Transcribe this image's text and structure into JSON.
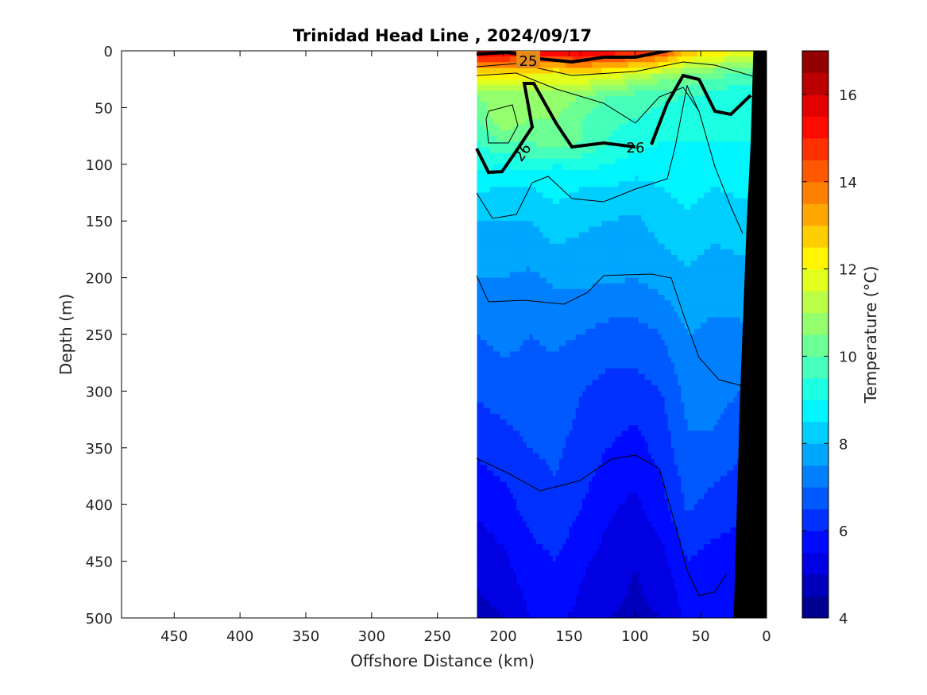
{
  "chart_data": {
    "type": "heatmap",
    "title": "Trinidad Head Line , 2024/09/17",
    "xlabel": "Offshore Distance (km)",
    "ylabel": "Depth (m)",
    "xlim": [
      490,
      0
    ],
    "ylim": [
      500,
      0
    ],
    "x_reversed": true,
    "y_reversed": true,
    "x_ticks": [
      450,
      400,
      350,
      300,
      250,
      200,
      150,
      100,
      50,
      0
    ],
    "y_ticks": [
      0,
      50,
      100,
      150,
      200,
      250,
      300,
      350,
      400,
      450,
      500
    ],
    "colorbar": {
      "label": "Temperature (°C)",
      "range": [
        4,
        17
      ],
      "ticks": [
        4,
        6,
        8,
        10,
        12,
        14,
        16
      ],
      "levels": [
        4,
        4.5,
        5,
        5.5,
        6,
        6.5,
        7,
        7.5,
        8,
        8.5,
        9,
        9.5,
        10,
        10.5,
        11,
        11.5,
        12,
        12.5,
        13,
        13.5,
        14,
        14.5,
        15,
        15.5,
        16,
        16.5,
        17
      ],
      "colormap": "jet"
    },
    "data_extent_km": [
      220,
      0
    ],
    "contour_labels": [
      "25",
      "26",
      "26"
    ],
    "temperature_field": {
      "distance_km": [
        220,
        200,
        180,
        160,
        140,
        120,
        100,
        80,
        60,
        40,
        20
      ],
      "depth_m": [
        0,
        20,
        40,
        60,
        80,
        100,
        120,
        150,
        200,
        250,
        300,
        350,
        400,
        450,
        500
      ],
      "values": [
        [
          16.0,
          15.8,
          15.5,
          15.8,
          16.0,
          15.5,
          15.3,
          14.8,
          13.0,
          12.5,
          12.0
        ],
        [
          12.5,
          12.5,
          12.2,
          12.0,
          12.2,
          12.0,
          11.5,
          11.0,
          10.5,
          10.2,
          10.0
        ],
        [
          10.5,
          10.8,
          10.5,
          10.8,
          10.5,
          10.0,
          9.8,
          9.6,
          9.5,
          9.3,
          9.0
        ],
        [
          10.0,
          11.0,
          10.5,
          10.5,
          10.0,
          9.6,
          9.5,
          9.3,
          9.2,
          9.1,
          9.0
        ],
        [
          9.5,
          10.0,
          10.0,
          10.5,
          10.0,
          9.5,
          9.2,
          9.0,
          9.0,
          9.0,
          9.0
        ],
        [
          9.2,
          9.0,
          9.3,
          9.0,
          9.2,
          9.0,
          8.8,
          8.8,
          8.9,
          8.8,
          8.9
        ],
        [
          8.6,
          8.5,
          8.5,
          8.7,
          8.5,
          8.5,
          8.3,
          8.5,
          8.7,
          8.5,
          8.6
        ],
        [
          8.0,
          8.0,
          8.0,
          8.3,
          8.1,
          8.0,
          7.9,
          8.2,
          8.4,
          8.2,
          8.3
        ],
        [
          7.5,
          7.5,
          7.4,
          7.6,
          7.6,
          7.6,
          7.5,
          7.7,
          7.9,
          7.7,
          7.8
        ],
        [
          7.0,
          7.2,
          7.0,
          7.1,
          7.0,
          6.8,
          6.8,
          7.0,
          7.5,
          7.4,
          7.4
        ],
        [
          6.6,
          6.7,
          6.8,
          6.8,
          6.5,
          6.3,
          6.3,
          6.5,
          7.2,
          7.2,
          7.0
        ],
        [
          6.1,
          6.3,
          6.5,
          6.6,
          6.3,
          6.0,
          5.8,
          6.2,
          6.9,
          6.9,
          6.6
        ],
        [
          5.6,
          5.8,
          6.2,
          6.4,
          6.0,
          5.6,
          5.4,
          5.8,
          6.6,
          6.3,
          6.1
        ],
        [
          5.2,
          5.4,
          5.8,
          6.0,
          5.6,
          5.3,
          5.0,
          5.3,
          6.0,
          5.8,
          5.8
        ],
        [
          4.8,
          5.0,
          5.5,
          5.7,
          5.3,
          5.0,
          4.9,
          5.0,
          5.6,
          5.5,
          5.6
        ]
      ]
    },
    "bathymetry": {
      "distance_km": [
        25,
        20,
        15,
        12,
        10
      ],
      "depth_m": [
        500,
        300,
        150,
        80,
        0
      ]
    }
  },
  "colors": {
    "background": "#ffffff",
    "axis": "#000000",
    "seafloor": "#000000",
    "contour": "#000000"
  }
}
